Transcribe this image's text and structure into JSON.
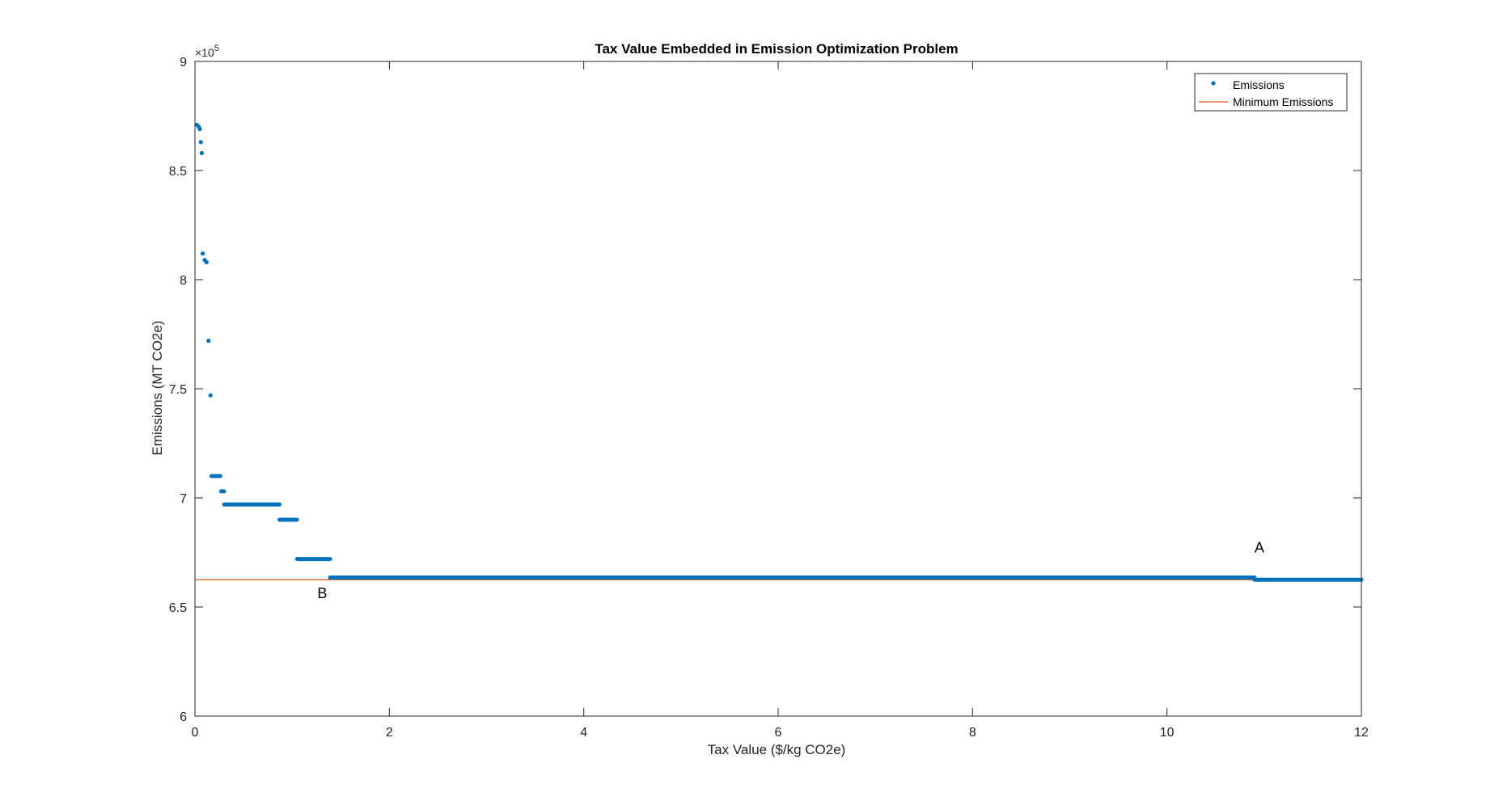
{
  "chart_data": {
    "type": "scatter",
    "title": "Tax Value Embedded in Emission Optimization Problem",
    "xlabel": "Tax Value ($/kg CO2e)",
    "ylabel": "Emissions (MT CO2e)",
    "xlim": [
      0,
      12
    ],
    "ylim": [
      600000,
      900000
    ],
    "xticks": [
      0,
      2,
      4,
      6,
      8,
      10,
      12
    ],
    "yticks": [
      6,
      6.5,
      7,
      7.5,
      8,
      8.5,
      9
    ],
    "ytick_labels": [
      "6",
      "6.5",
      "7",
      "7.5",
      "8",
      "8.5",
      "9"
    ],
    "xtick_labels": [
      "0",
      "2",
      "4",
      "6",
      "8",
      "10",
      "12"
    ],
    "y_exponent_label": "×10",
    "y_exponent_power": "5",
    "grid": false,
    "legend_position": "top-right",
    "series": [
      {
        "name": "Emissions",
        "kind": "points",
        "color": "#0072BD",
        "points": [
          [
            0.02,
            871000
          ],
          [
            0.04,
            870000
          ],
          [
            0.05,
            869000
          ],
          [
            0.06,
            863000
          ],
          [
            0.07,
            858000
          ],
          [
            0.08,
            812000
          ],
          [
            0.1,
            809000
          ],
          [
            0.12,
            808000
          ],
          [
            0.14,
            772000
          ],
          [
            0.16,
            747000
          ]
        ],
        "segments": [
          {
            "x_start": 0.17,
            "x_end": 0.26,
            "y": 710000
          },
          {
            "x_start": 0.27,
            "x_end": 0.3,
            "y": 703000
          },
          {
            "x_start": 0.3,
            "x_end": 0.87,
            "y": 697000
          },
          {
            "x_start": 0.87,
            "x_end": 1.05,
            "y": 690000
          },
          {
            "x_start": 1.05,
            "x_end": 1.39,
            "y": 672000
          },
          {
            "x_start": 1.39,
            "x_end": 10.9,
            "y": 663500
          },
          {
            "x_start": 10.9,
            "x_end": 12.0,
            "y": 662500
          }
        ]
      },
      {
        "name": "Minimum Emissions",
        "kind": "line",
        "color": "#D95319",
        "x": [
          0,
          12
        ],
        "y": [
          662500,
          662500
        ]
      }
    ],
    "annotations": [
      {
        "text": "A",
        "x": 10.95,
        "y": 675000
      },
      {
        "text": "B",
        "x": 1.31,
        "y": 654000
      }
    ]
  }
}
